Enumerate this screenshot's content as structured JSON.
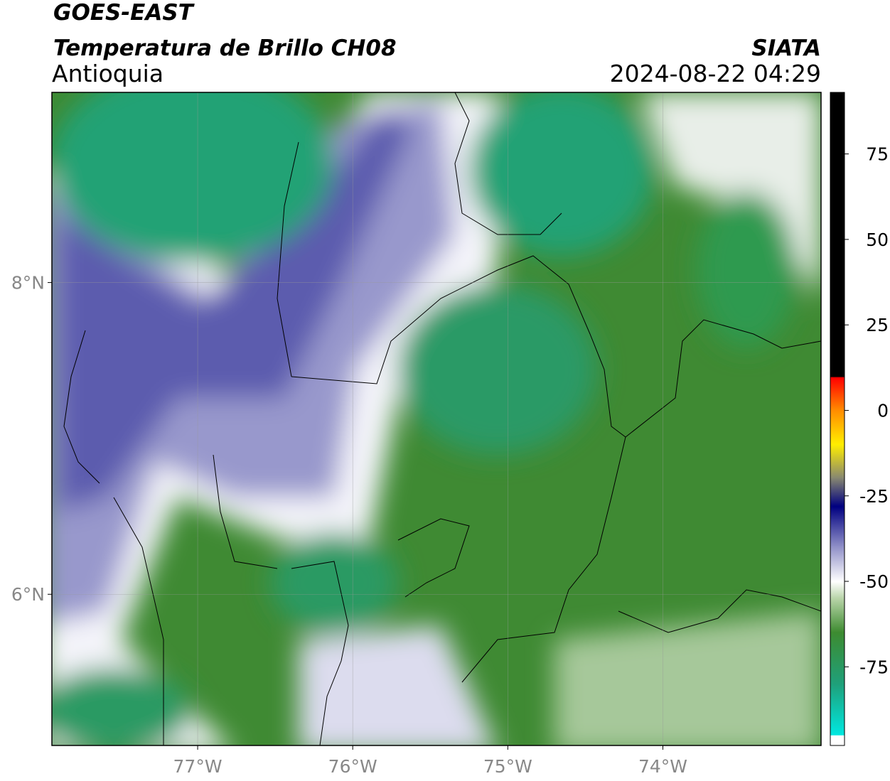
{
  "header": {
    "title": "GOES-EAST",
    "subtitle": "Temperatura de Brillo CH08",
    "region": "Antioquia",
    "source": "SIATA",
    "timestamp": "2024-08-22 04:29"
  },
  "map": {
    "xlim": [
      -77.94,
      -72.98
    ],
    "ylim": [
      5.03,
      9.22
    ],
    "xticks": [
      {
        "value": -77,
        "label": "77°W"
      },
      {
        "value": -76,
        "label": "76°W"
      },
      {
        "value": -75,
        "label": "75°W"
      },
      {
        "value": -74,
        "label": "74°W"
      }
    ],
    "yticks": [
      {
        "value": 8,
        "label": "8°N"
      },
      {
        "value": 6,
        "label": "6°N"
      }
    ],
    "grid": true
  },
  "colorbar": {
    "lim": [
      -98,
      93
    ],
    "ticks": [
      -75,
      -50,
      -25,
      0,
      25,
      50,
      75
    ]
  }
}
